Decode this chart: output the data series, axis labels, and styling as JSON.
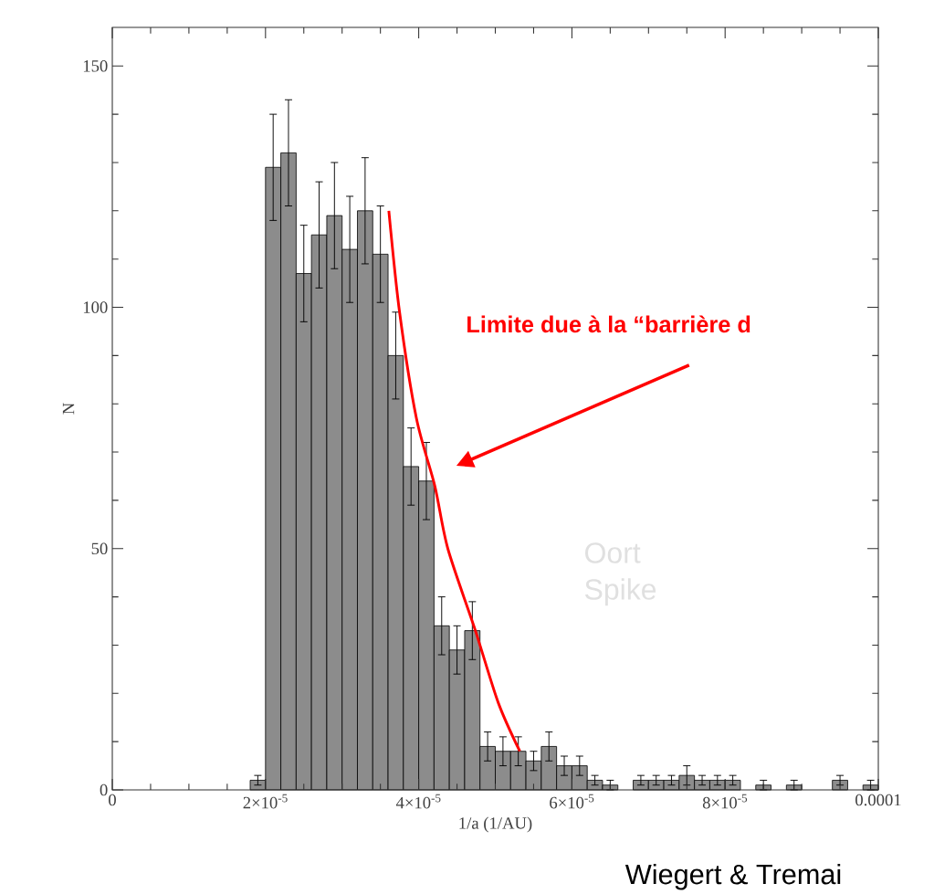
{
  "chart_data": {
    "type": "histogram",
    "xlabel": "1/a (1/AU)",
    "ylabel": "N",
    "xlim": [
      0,
      0.0001
    ],
    "ylim": [
      0,
      158
    ],
    "xticks": [
      {
        "value": 0,
        "label": "0"
      },
      {
        "value": 2e-05,
        "label": "2×10$^{-5}$"
      },
      {
        "value": 4e-05,
        "label": "4×10$^{-5}$"
      },
      {
        "value": 6e-05,
        "label": "6×10$^{-5}$"
      },
      {
        "value": 8e-05,
        "label": "8×10$^{-5}$"
      },
      {
        "value": 0.0001,
        "label": "0.0001"
      }
    ],
    "yticks": [
      0,
      50,
      100,
      150
    ],
    "series": [
      {
        "color": "#8c8c8c",
        "bins": [
          1.8e-05,
          2e-05,
          2.2e-05,
          2.4e-05,
          2.6e-05,
          2.8e-05,
          3e-05,
          3.2e-05,
          3.4e-05,
          3.6e-05,
          3.8e-05,
          4e-05,
          4.2e-05,
          4.4e-05,
          4.6e-05,
          4.8e-05,
          5e-05,
          5.2e-05,
          5.4e-05,
          5.6e-05,
          5.8e-05,
          6e-05,
          6.2e-05,
          6.4e-05,
          6.6e-05,
          6.8e-05,
          7e-05,
          7.2e-05,
          7.4e-05,
          7.6e-05,
          7.8e-05,
          8e-05,
          8.2e-05,
          8.4e-05,
          8.6e-05,
          8.8e-05,
          9e-05,
          9.2e-05,
          9.4e-05,
          9.6e-05,
          9.8e-05,
          0.0001
        ],
        "values": [
          2,
          129,
          132,
          107,
          115,
          119,
          112,
          120,
          111,
          90,
          67,
          64,
          34,
          29,
          33,
          9,
          8,
          8,
          6,
          9,
          5,
          5,
          2,
          1,
          0,
          2,
          2,
          2,
          3,
          2,
          2,
          2,
          0,
          1,
          0,
          1,
          0,
          0,
          2,
          0,
          1
        ],
        "errors": [
          1,
          11,
          11,
          10,
          11,
          11,
          11,
          11,
          10,
          9,
          8,
          8,
          6,
          5,
          6,
          3,
          3,
          3,
          2,
          3,
          2,
          2,
          1,
          1,
          null,
          1,
          1,
          1,
          2,
          1,
          1,
          1,
          null,
          1,
          null,
          1,
          null,
          null,
          1,
          null,
          1
        ]
      },
      {
        "type": "line",
        "color": "#ff0000",
        "x": [
          3.61e-05,
          3.75e-05,
          3.97e-05,
          4.21e-05,
          4.38e-05,
          4.74e-05,
          5.04e-05,
          5.32e-05
        ],
        "values": [
          120,
          99,
          77,
          63,
          50,
          33,
          18,
          8
        ]
      }
    ],
    "annotations": [
      "**Limite due à la “barrière d**",
      "Oort Spike",
      "Wiegert & Tremai"
    ]
  }
}
